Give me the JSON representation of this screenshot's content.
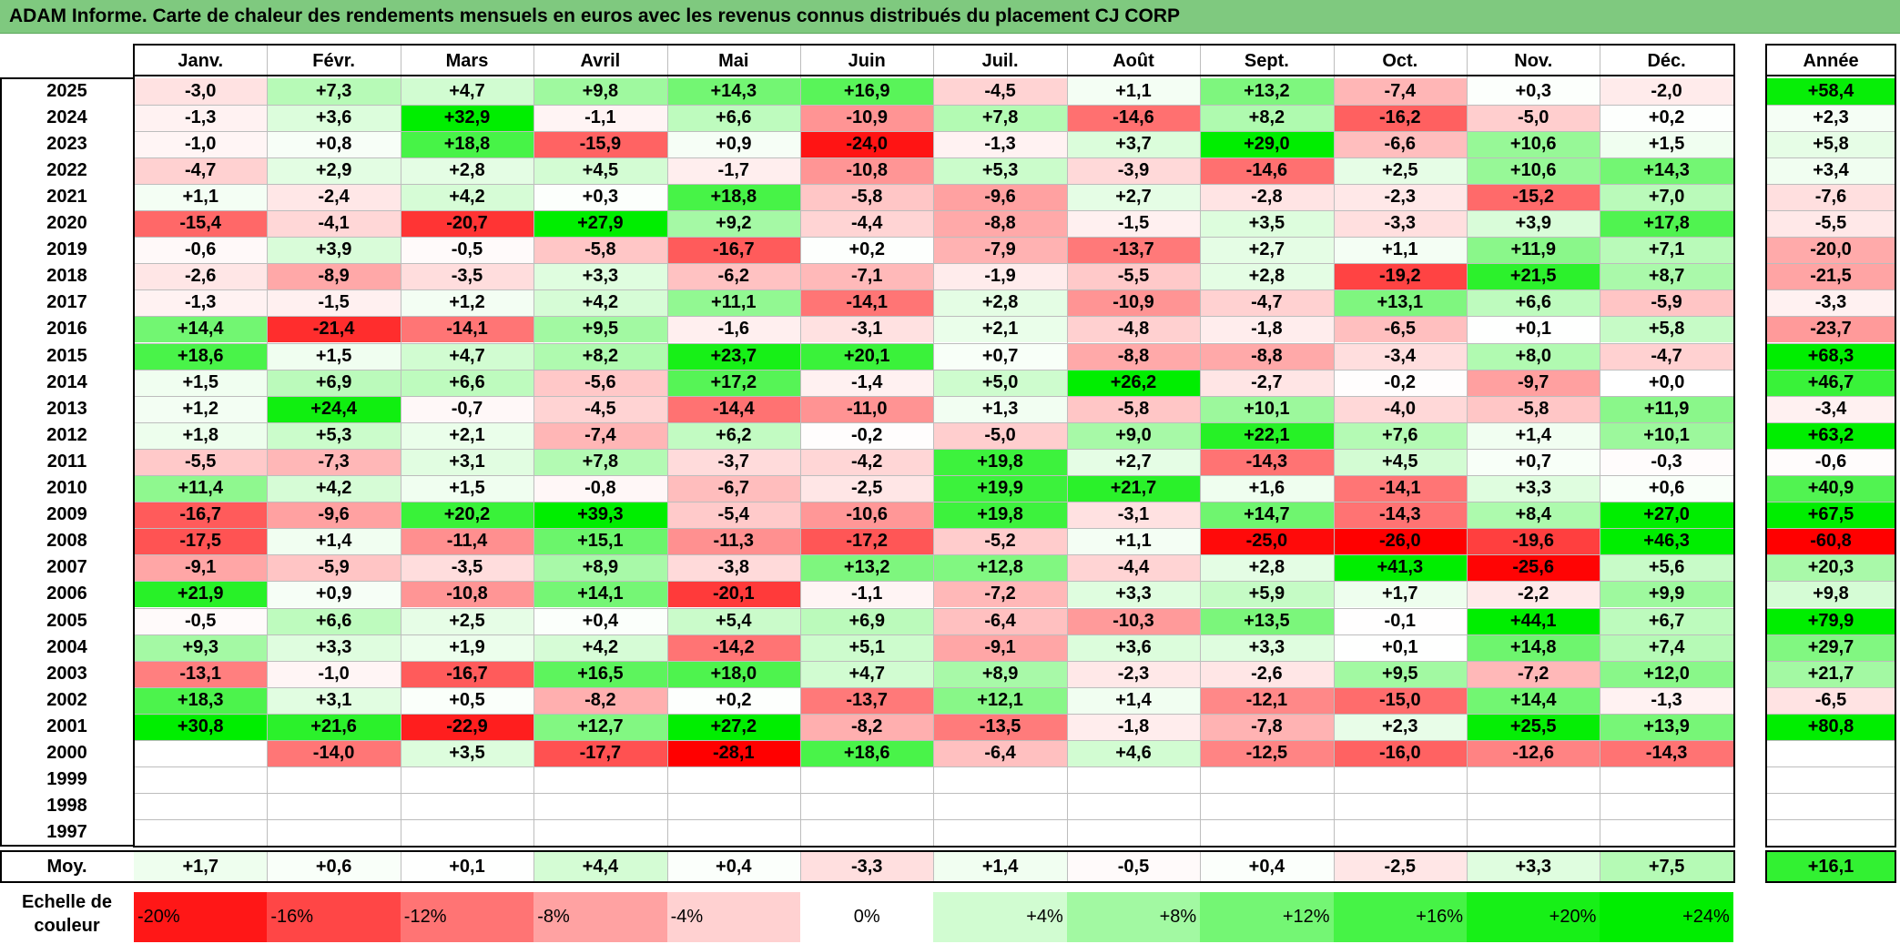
{
  "title": "ADAM Informe. Carte de chaleur des rendements mensuels en euros avec les revenus connus distribués du placement CJ CORP",
  "chart_data": {
    "type": "heatmap",
    "months": [
      "Janv.",
      "Févr.",
      "Mars",
      "Avril",
      "Mai",
      "Juin",
      "Juil.",
      "Août",
      "Sept.",
      "Oct.",
      "Nov.",
      "Déc."
    ],
    "year_header": "Année",
    "rows": [
      {
        "year": "2025",
        "values": [
          "-3,0",
          "+7,3",
          "+4,7",
          "+9,8",
          "+14,3",
          "+16,9",
          "-4,5",
          "+1,1",
          "+13,2",
          "-7,4",
          "+0,3",
          "-2,0"
        ],
        "annual": "+58,4"
      },
      {
        "year": "2024",
        "values": [
          "-1,3",
          "+3,6",
          "+32,9",
          "-1,1",
          "+6,6",
          "-10,9",
          "+7,8",
          "-14,6",
          "+8,2",
          "-16,2",
          "-5,0",
          "+0,2"
        ],
        "annual": "+2,3"
      },
      {
        "year": "2023",
        "values": [
          "-1,0",
          "+0,8",
          "+18,8",
          "-15,9",
          "+0,9",
          "-24,0",
          "-1,3",
          "+3,7",
          "+29,0",
          "-6,6",
          "+10,6",
          "+1,5"
        ],
        "annual": "+5,8"
      },
      {
        "year": "2022",
        "values": [
          "-4,7",
          "+2,9",
          "+2,8",
          "+4,5",
          "-1,7",
          "-10,8",
          "+5,3",
          "-3,9",
          "-14,6",
          "+2,5",
          "+10,6",
          "+14,3"
        ],
        "annual": "+3,4"
      },
      {
        "year": "2021",
        "values": [
          "+1,1",
          "-2,4",
          "+4,2",
          "+0,3",
          "+18,8",
          "-5,8",
          "-9,6",
          "+2,7",
          "-2,8",
          "-2,3",
          "-15,2",
          "+7,0"
        ],
        "annual": "-7,6"
      },
      {
        "year": "2020",
        "values": [
          "-15,4",
          "-4,1",
          "-20,7",
          "+27,9",
          "+9,2",
          "-4,4",
          "-8,8",
          "-1,5",
          "+3,5",
          "-3,3",
          "+3,9",
          "+17,8"
        ],
        "annual": "-5,5"
      },
      {
        "year": "2019",
        "values": [
          "-0,6",
          "+3,9",
          "-0,5",
          "-5,8",
          "-16,7",
          "+0,2",
          "-7,9",
          "-13,7",
          "+2,7",
          "+1,1",
          "+11,9",
          "+7,1"
        ],
        "annual": "-20,0"
      },
      {
        "year": "2018",
        "values": [
          "-2,6",
          "-8,9",
          "-3,5",
          "+3,3",
          "-6,2",
          "-7,1",
          "-1,9",
          "-5,5",
          "+2,8",
          "-19,2",
          "+21,5",
          "+8,7"
        ],
        "annual": "-21,5"
      },
      {
        "year": "2017",
        "values": [
          "-1,3",
          "-1,5",
          "+1,2",
          "+4,2",
          "+11,1",
          "-14,1",
          "+2,8",
          "-10,9",
          "-4,7",
          "+13,1",
          "+6,6",
          "-5,9"
        ],
        "annual": "-3,3"
      },
      {
        "year": "2016",
        "values": [
          "+14,4",
          "-21,4",
          "-14,1",
          "+9,5",
          "-1,6",
          "-3,1",
          "+2,1",
          "-4,8",
          "-1,8",
          "-6,5",
          "+0,1",
          "+5,8"
        ],
        "annual": "-23,7"
      },
      {
        "year": "2015",
        "values": [
          "+18,6",
          "+1,5",
          "+4,7",
          "+8,2",
          "+23,7",
          "+20,1",
          "+0,7",
          "-8,8",
          "-8,8",
          "-3,4",
          "+8,0",
          "-4,7"
        ],
        "annual": "+68,3"
      },
      {
        "year": "2014",
        "values": [
          "+1,5",
          "+6,9",
          "+6,6",
          "-5,6",
          "+17,2",
          "-1,4",
          "+5,0",
          "+26,2",
          "-2,7",
          "-0,2",
          "-9,7",
          "+0,0"
        ],
        "annual": "+46,7"
      },
      {
        "year": "2013",
        "values": [
          "+1,2",
          "+24,4",
          "-0,7",
          "-4,5",
          "-14,4",
          "-11,0",
          "+1,3",
          "-5,8",
          "+10,1",
          "-4,0",
          "-5,8",
          "+11,9"
        ],
        "annual": "-3,4"
      },
      {
        "year": "2012",
        "values": [
          "+1,8",
          "+5,3",
          "+2,1",
          "-7,4",
          "+6,2",
          "-0,2",
          "-5,0",
          "+9,0",
          "+22,1",
          "+7,6",
          "+1,4",
          "+10,1"
        ],
        "annual": "+63,2"
      },
      {
        "year": "2011",
        "values": [
          "-5,5",
          "-7,3",
          "+3,1",
          "+7,8",
          "-3,7",
          "-4,2",
          "+19,8",
          "+2,7",
          "-14,3",
          "+4,5",
          "+0,7",
          "-0,3"
        ],
        "annual": "-0,6"
      },
      {
        "year": "2010",
        "values": [
          "+11,4",
          "+4,2",
          "+1,5",
          "-0,8",
          "-6,7",
          "-2,5",
          "+19,9",
          "+21,7",
          "+1,6",
          "-14,1",
          "+3,3",
          "+0,6"
        ],
        "annual": "+40,9"
      },
      {
        "year": "2009",
        "values": [
          "-16,7",
          "-9,6",
          "+20,2",
          "+39,3",
          "-5,4",
          "-10,6",
          "+19,8",
          "-3,1",
          "+14,7",
          "-14,3",
          "+8,4",
          "+27,0"
        ],
        "annual": "+67,5"
      },
      {
        "year": "2008",
        "values": [
          "-17,5",
          "+1,4",
          "-11,4",
          "+15,1",
          "-11,3",
          "-17,2",
          "-5,2",
          "+1,1",
          "-25,0",
          "-26,0",
          "-19,6",
          "+46,3"
        ],
        "annual": "-60,8"
      },
      {
        "year": "2007",
        "values": [
          "-9,1",
          "-5,9",
          "-3,5",
          "+8,9",
          "-3,8",
          "+13,2",
          "+12,8",
          "-4,4",
          "+2,8",
          "+41,3",
          "-25,6",
          "+5,6"
        ],
        "annual": "+20,3"
      },
      {
        "year": "2006",
        "values": [
          "+21,9",
          "+0,9",
          "-10,8",
          "+14,1",
          "-20,1",
          "-1,1",
          "-7,2",
          "+3,3",
          "+5,9",
          "+1,7",
          "-2,2",
          "+9,9"
        ],
        "annual": "+9,8"
      },
      {
        "year": "2005",
        "values": [
          "-0,5",
          "+6,6",
          "+2,5",
          "+0,4",
          "+5,4",
          "+6,9",
          "-6,4",
          "-10,3",
          "+13,5",
          "-0,1",
          "+44,1",
          "+6,7"
        ],
        "annual": "+79,9"
      },
      {
        "year": "2004",
        "values": [
          "+9,3",
          "+3,3",
          "+1,9",
          "+4,2",
          "-14,2",
          "+5,1",
          "-9,1",
          "+3,6",
          "+3,3",
          "+0,1",
          "+14,8",
          "+7,4"
        ],
        "annual": "+29,7"
      },
      {
        "year": "2003",
        "values": [
          "-13,1",
          "-1,0",
          "-16,7",
          "+16,5",
          "+18,0",
          "+4,7",
          "+8,9",
          "-2,3",
          "-2,6",
          "+9,5",
          "-7,2",
          "+12,0"
        ],
        "annual": "+21,7"
      },
      {
        "year": "2002",
        "values": [
          "+18,3",
          "+3,1",
          "+0,5",
          "-8,2",
          "+0,2",
          "-13,7",
          "+12,1",
          "+1,4",
          "-12,1",
          "-15,0",
          "+14,4",
          "-1,3"
        ],
        "annual": "-6,5"
      },
      {
        "year": "2001",
        "values": [
          "+30,8",
          "+21,6",
          "-22,9",
          "+12,7",
          "+27,2",
          "-8,2",
          "-13,5",
          "-1,8",
          "-7,8",
          "+2,3",
          "+25,5",
          "+13,9"
        ],
        "annual": "+80,8"
      },
      {
        "year": "2000",
        "values": [
          "",
          "-14,0",
          "+3,5",
          "-17,7",
          "-28,1",
          "+18,6",
          "-6,4",
          "+4,6",
          "-12,5",
          "-16,0",
          "-12,6",
          "-14,3"
        ],
        "annual": ""
      },
      {
        "year": "1999",
        "values": [
          "",
          "",
          "",
          "",
          "",
          "",
          "",
          "",
          "",
          "",
          "",
          ""
        ],
        "annual": ""
      },
      {
        "year": "1998",
        "values": [
          "",
          "",
          "",
          "",
          "",
          "",
          "",
          "",
          "",
          "",
          "",
          ""
        ],
        "annual": ""
      },
      {
        "year": "1997",
        "values": [
          "",
          "",
          "",
          "",
          "",
          "",
          "",
          "",
          "",
          "",
          "",
          ""
        ],
        "annual": ""
      }
    ],
    "average": {
      "label": "Moy.",
      "values": [
        "+1,7",
        "+0,6",
        "+0,1",
        "+4,4",
        "+0,4",
        "-3,3",
        "+1,4",
        "-0,5",
        "+0,4",
        "-2,5",
        "+3,3",
        "+7,5"
      ],
      "annual": "+16,1"
    },
    "scale": {
      "label": "Echelle de couleur",
      "steps": [
        {
          "text": "-20%",
          "value": -20
        },
        {
          "text": "-16%",
          "value": -16
        },
        {
          "text": "-12%",
          "value": -12
        },
        {
          "text": "-8%",
          "value": -8
        },
        {
          "text": "-4%",
          "value": -4
        },
        {
          "text": "0%",
          "value": 0
        },
        {
          "text": "+4%",
          "value": 4
        },
        {
          "text": "+8%",
          "value": 8
        },
        {
          "text": "+12%",
          "value": 12
        },
        {
          "text": "+16%",
          "value": 16
        },
        {
          "text": "+20%",
          "value": 20
        },
        {
          "text": "+24%",
          "value": 24
        }
      ],
      "colors": {
        "negative": "#ff0000",
        "neutral": "#ffffff",
        "positive": "#00ee00"
      }
    }
  }
}
